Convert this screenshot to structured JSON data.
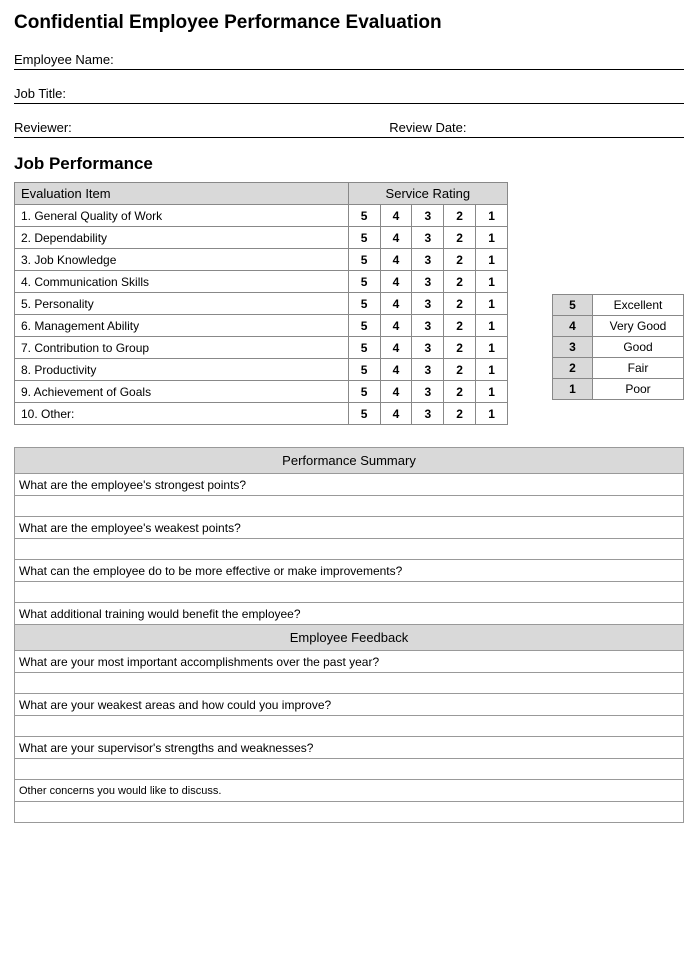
{
  "title": "Confidential Employee Performance Evaluation",
  "fields": {
    "employee_name": "Employee Name:",
    "job_title": "Job Title:",
    "reviewer": "Reviewer:",
    "review_date": "Review Date:"
  },
  "section_heading": "Job Performance",
  "eval_table": {
    "header_item": "Evaluation  Item",
    "header_rating": "Service Rating",
    "ratings": [
      "5",
      "4",
      "3",
      "2",
      "1"
    ],
    "items": [
      "1.  General Quality of Work",
      "2.  Dependability",
      "3.  Job Knowledge",
      "4.  Communication Skills",
      "5.  Personality",
      "6.  Management Ability",
      "7.  Contribution to Group",
      "8.  Productivity",
      "9.  Achievement of Goals",
      "10. Other:"
    ]
  },
  "legend": [
    {
      "num": "5",
      "label": "Excellent"
    },
    {
      "num": "4",
      "label": "Very Good"
    },
    {
      "num": "3",
      "label": "Good"
    },
    {
      "num": "2",
      "label": "Fair"
    },
    {
      "num": "1",
      "label": "Poor"
    }
  ],
  "summary": {
    "heading": "Performance Summary",
    "questions": [
      "What are the employee's strongest points?",
      "What are the employee's weakest points?",
      "What can the employee do to be more effective or make improvements?",
      "What additional training would benefit the employee?"
    ]
  },
  "feedback": {
    "heading": "Employee Feedback",
    "questions": [
      "What are your most important accomplishments over the past year?",
      "What are your weakest areas and how could you improve?",
      "What are your supervisor's strengths and weaknesses?"
    ],
    "other": "Other concerns you would like to discuss."
  },
  "colors": {
    "header_bg": "#d9d9d9",
    "border": "#888888",
    "text": "#000000",
    "background": "#ffffff"
  }
}
